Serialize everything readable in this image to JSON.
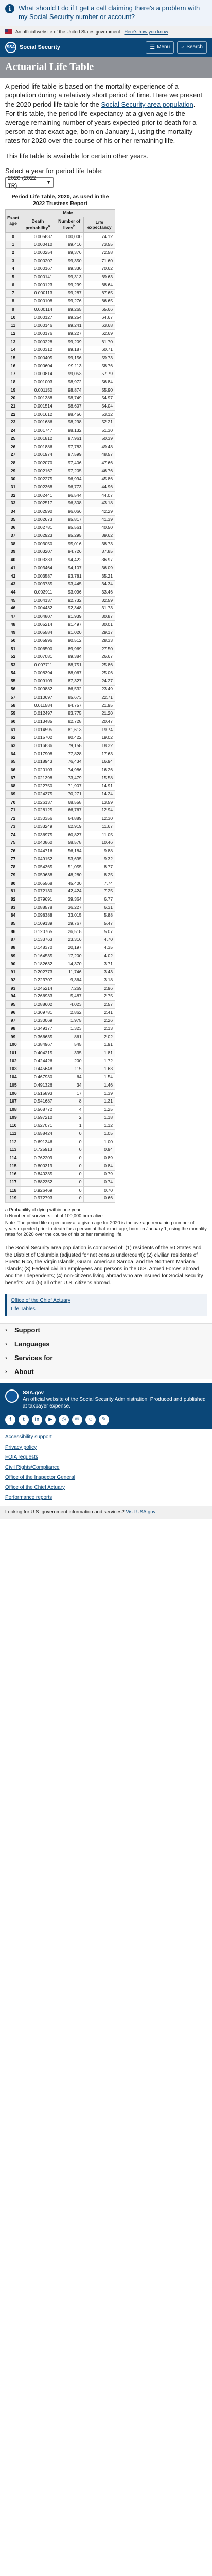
{
  "alert": {
    "text": "What should I do if I get a call claiming there's a problem with my Social Security number or account?"
  },
  "gov_banner": {
    "text": "An official website of the United States government",
    "link": "Here's how you know"
  },
  "header": {
    "logo_text": "Social Security",
    "menu_label": "Menu",
    "search_label": "Search"
  },
  "title": "Actuarial Life Table",
  "intro": {
    "p1_before": "A period life table is based on the mortality experience of a population during a relatively short period of time. Here we present the 2020 period life table for the ",
    "p1_link": "Social Security area population",
    "p1_after": ". For this table, the period life expectancy at a given age is the average remaining number of years expected prior to death for a person at that exact age, born on January 1, using the mortality rates for 2020 over the course of his or her remaining life.",
    "p2": "This life table is available for certain other years."
  },
  "year_select": {
    "label": "Select a year for period life table:",
    "value": "2020 (2022 TR)"
  },
  "table": {
    "caption": "Period Life Table, 2020, as used in the 2022 Trustees Report",
    "group_header": "Male",
    "headers": [
      "Exact age",
      "Death probability",
      "Number of lives",
      "Life expectancy"
    ],
    "footnote_markers": [
      "a",
      "b"
    ],
    "rows": [
      [
        "0",
        "0.005837",
        "100,000",
        "74.12"
      ],
      [
        "1",
        "0.000410",
        "99,416",
        "73.55"
      ],
      [
        "2",
        "0.000254",
        "99,376",
        "72.58"
      ],
      [
        "3",
        "0.000207",
        "99,350",
        "71.60"
      ],
      [
        "4",
        "0.000167",
        "99,330",
        "70.62"
      ],
      [
        "5",
        "0.000141",
        "99,313",
        "69.63"
      ],
      [
        "6",
        "0.000123",
        "99,299",
        "68.64"
      ],
      [
        "7",
        "0.000113",
        "99,287",
        "67.65"
      ],
      [
        "8",
        "0.000108",
        "99,276",
        "66.65"
      ],
      [
        "9",
        "0.000114",
        "99,265",
        "65.66"
      ],
      [
        "10",
        "0.000127",
        "99,254",
        "64.67"
      ],
      [
        "11",
        "0.000146",
        "99,241",
        "63.68"
      ],
      [
        "12",
        "0.000176",
        "99,227",
        "62.69"
      ],
      [
        "13",
        "0.000228",
        "99,209",
        "61.70"
      ],
      [
        "14",
        "0.000312",
        "99,187",
        "60.71"
      ],
      [
        "15",
        "0.000405",
        "99,156",
        "59.73"
      ],
      [
        "16",
        "0.000604",
        "99,113",
        "58.76"
      ],
      [
        "17",
        "0.000814",
        "99,053",
        "57.79"
      ],
      [
        "18",
        "0.001003",
        "98,972",
        "56.84"
      ],
      [
        "19",
        "0.001150",
        "98,874",
        "55.90"
      ],
      [
        "20",
        "0.001388",
        "98,749",
        "54.97"
      ],
      [
        "21",
        "0.001514",
        "98,607",
        "54.04"
      ],
      [
        "22",
        "0.001612",
        "98,456",
        "53.12"
      ],
      [
        "23",
        "0.001686",
        "98,298",
        "52.21"
      ],
      [
        "24",
        "0.001747",
        "98,132",
        "51.30"
      ],
      [
        "25",
        "0.001812",
        "97,961",
        "50.39"
      ],
      [
        "26",
        "0.001886",
        "97,783",
        "49.48"
      ],
      [
        "27",
        "0.001974",
        "97,599",
        "48.57"
      ],
      [
        "28",
        "0.002070",
        "97,406",
        "47.66"
      ],
      [
        "29",
        "0.002167",
        "97,205",
        "46.76"
      ],
      [
        "30",
        "0.002275",
        "96,994",
        "45.86"
      ],
      [
        "31",
        "0.002368",
        "96,773",
        "44.96"
      ],
      [
        "32",
        "0.002441",
        "96,544",
        "44.07"
      ],
      [
        "33",
        "0.002517",
        "96,308",
        "43.18"
      ],
      [
        "34",
        "0.002590",
        "96,066",
        "42.29"
      ],
      [
        "35",
        "0.002673",
        "95,817",
        "41.39"
      ],
      [
        "36",
        "0.002781",
        "95,561",
        "40.50"
      ],
      [
        "37",
        "0.002923",
        "95,295",
        "39.62"
      ],
      [
        "38",
        "0.003050",
        "95,016",
        "38.73"
      ],
      [
        "39",
        "0.003207",
        "94,726",
        "37.85"
      ],
      [
        "40",
        "0.003333",
        "94,422",
        "36.97"
      ],
      [
        "41",
        "0.003464",
        "94,107",
        "36.09"
      ],
      [
        "42",
        "0.003587",
        "93,781",
        "35.21"
      ],
      [
        "43",
        "0.003735",
        "93,445",
        "34.34"
      ],
      [
        "44",
        "0.003911",
        "93,096",
        "33.46"
      ],
      [
        "45",
        "0.004137",
        "92,732",
        "32.59"
      ],
      [
        "46",
        "0.004432",
        "92,348",
        "31.73"
      ],
      [
        "47",
        "0.004807",
        "91,939",
        "30.87"
      ],
      [
        "48",
        "0.005214",
        "91,497",
        "30.01"
      ],
      [
        "49",
        "0.005584",
        "91,020",
        "29.17"
      ],
      [
        "50",
        "0.005996",
        "90,512",
        "28.33"
      ],
      [
        "51",
        "0.006500",
        "89,969",
        "27.50"
      ],
      [
        "52",
        "0.007081",
        "89,384",
        "26.67"
      ],
      [
        "53",
        "0.007711",
        "88,751",
        "25.86"
      ],
      [
        "54",
        "0.008394",
        "88,067",
        "25.06"
      ],
      [
        "55",
        "0.009109",
        "87,327",
        "24.27"
      ],
      [
        "56",
        "0.009882",
        "86,532",
        "23.49"
      ],
      [
        "57",
        "0.010697",
        "85,673",
        "22.71"
      ],
      [
        "58",
        "0.011584",
        "84,757",
        "21.95"
      ],
      [
        "59",
        "0.012497",
        "83,775",
        "21.20"
      ],
      [
        "60",
        "0.013485",
        "82,728",
        "20.47"
      ],
      [
        "61",
        "0.014595",
        "81,613",
        "19.74"
      ],
      [
        "62",
        "0.015702",
        "80,422",
        "19.02"
      ],
      [
        "63",
        "0.016836",
        "79,158",
        "18.32"
      ],
      [
        "64",
        "0.017908",
        "77,828",
        "17.63"
      ],
      [
        "65",
        "0.018943",
        "76,434",
        "16.94"
      ],
      [
        "66",
        "0.020103",
        "74,986",
        "16.26"
      ],
      [
        "67",
        "0.021398",
        "73,479",
        "15.58"
      ],
      [
        "68",
        "0.022750",
        "71,907",
        "14.91"
      ],
      [
        "69",
        "0.024375",
        "70,271",
        "14.24"
      ],
      [
        "70",
        "0.026137",
        "68,558",
        "13.59"
      ],
      [
        "71",
        "0.028125",
        "66,767",
        "12.94"
      ],
      [
        "72",
        "0.030356",
        "64,889",
        "12.30"
      ],
      [
        "73",
        "0.033249",
        "62,919",
        "11.67"
      ],
      [
        "74",
        "0.036975",
        "60,827",
        "11.05"
      ],
      [
        "75",
        "0.040860",
        "58,578",
        "10.46"
      ],
      [
        "76",
        "0.044716",
        "56,184",
        "9.88"
      ],
      [
        "77",
        "0.049152",
        "53,695",
        "9.32"
      ],
      [
        "78",
        "0.054365",
        "51,055",
        "8.77"
      ],
      [
        "79",
        "0.059638",
        "48,280",
        "8.25"
      ],
      [
        "80",
        "0.065568",
        "45,400",
        "7.74"
      ],
      [
        "81",
        "0.072130",
        "42,424",
        "7.25"
      ],
      [
        "82",
        "0.079691",
        "39,364",
        "6.77"
      ],
      [
        "83",
        "0.088578",
        "36,227",
        "6.31"
      ],
      [
        "84",
        "0.098388",
        "33,015",
        "5.88"
      ],
      [
        "85",
        "0.109139",
        "29,767",
        "5.47"
      ],
      [
        "86",
        "0.120765",
        "26,518",
        "5.07"
      ],
      [
        "87",
        "0.133763",
        "23,316",
        "4.70"
      ],
      [
        "88",
        "0.148370",
        "20,197",
        "4.35"
      ],
      [
        "89",
        "0.164535",
        "17,200",
        "4.02"
      ],
      [
        "90",
        "0.182632",
        "14,370",
        "3.71"
      ],
      [
        "91",
        "0.202773",
        "11,746",
        "3.43"
      ],
      [
        "92",
        "0.223707",
        "9,364",
        "3.18"
      ],
      [
        "93",
        "0.245214",
        "7,269",
        "2.96"
      ],
      [
        "94",
        "0.266933",
        "5,487",
        "2.75"
      ],
      [
        "95",
        "0.288602",
        "4,023",
        "2.57"
      ],
      [
        "96",
        "0.309781",
        "2,862",
        "2.41"
      ],
      [
        "97",
        "0.330069",
        "1,975",
        "2.26"
      ],
      [
        "98",
        "0.349177",
        "1,323",
        "2.13"
      ],
      [
        "99",
        "0.366635",
        "861",
        "2.02"
      ],
      [
        "100",
        "0.384967",
        "545",
        "1.91"
      ],
      [
        "101",
        "0.404215",
        "335",
        "1.81"
      ],
      [
        "102",
        "0.424426",
        "200",
        "1.72"
      ],
      [
        "103",
        "0.445648",
        "115",
        "1.63"
      ],
      [
        "104",
        "0.467930",
        "64",
        "1.54"
      ],
      [
        "105",
        "0.491326",
        "34",
        "1.46"
      ],
      [
        "106",
        "0.515893",
        "17",
        "1.39"
      ],
      [
        "107",
        "0.541687",
        "8",
        "1.31"
      ],
      [
        "108",
        "0.568772",
        "4",
        "1.25"
      ],
      [
        "109",
        "0.597210",
        "2",
        "1.18"
      ],
      [
        "110",
        "0.627071",
        "1",
        "1.12"
      ],
      [
        "111",
        "0.658424",
        "0",
        "1.05"
      ],
      [
        "112",
        "0.691346",
        "0",
        "1.00"
      ],
      [
        "113",
        "0.725913",
        "0",
        "0.94"
      ],
      [
        "114",
        "0.762209",
        "0",
        "0.89"
      ],
      [
        "115",
        "0.800319",
        "0",
        "0.84"
      ],
      [
        "116",
        "0.840335",
        "0",
        "0.79"
      ],
      [
        "117",
        "0.882352",
        "0",
        "0.74"
      ],
      [
        "118",
        "0.926469",
        "0",
        "0.70"
      ],
      [
        "119",
        "0.972793",
        "0",
        "0.66"
      ]
    ]
  },
  "footnotes": [
    "a Probability of dying within one year.",
    "b Number of survivors out of 100,000 born alive.",
    "Note: The period life expectancy at a given age for 2020 is the average remaining number of years expected prior to death for a person at that exact age, born on January 1, using the mortality rates for 2020 over the course of his or her remaining life."
  ],
  "area_paragraph": "The Social Security area population is composed of: (1) residents of the 50 States and the District of Columbia (adjusted for net census undercount); (2) civilian residents of Puerto Rico, the Virgin Islands, Guam, American Samoa, and the Northern Mariana Islands; (3) Federal civilian employees and persons in the U.S. Armed Forces abroad and their dependents; (4) non-citizens living abroad who are insured for Social Security benefits; and (5) all other U.S. citizens abroad.",
  "office_links": [
    "Office of the Chief Actuary",
    "Life Tables"
  ],
  "accordion": [
    "Support",
    "Languages",
    "Services for",
    "About"
  ],
  "footer": {
    "site": "SSA.gov",
    "desc": "An official website of the Social Security Administration. Produced and published at taxpayer expense.",
    "social": [
      "f",
      "t",
      "in",
      "▶",
      "◎",
      "✉",
      "☺",
      "✎"
    ],
    "links": [
      "Accessibility support",
      "Privacy policy",
      "FOIA requests",
      "Civil Rights/Compliance",
      "Office of the Inspector General",
      "Office of the Chief Actuary",
      "Performance reports"
    ],
    "bottom_before": "Looking for U.S. government information and services? ",
    "bottom_link": "Visit USA.gov"
  }
}
